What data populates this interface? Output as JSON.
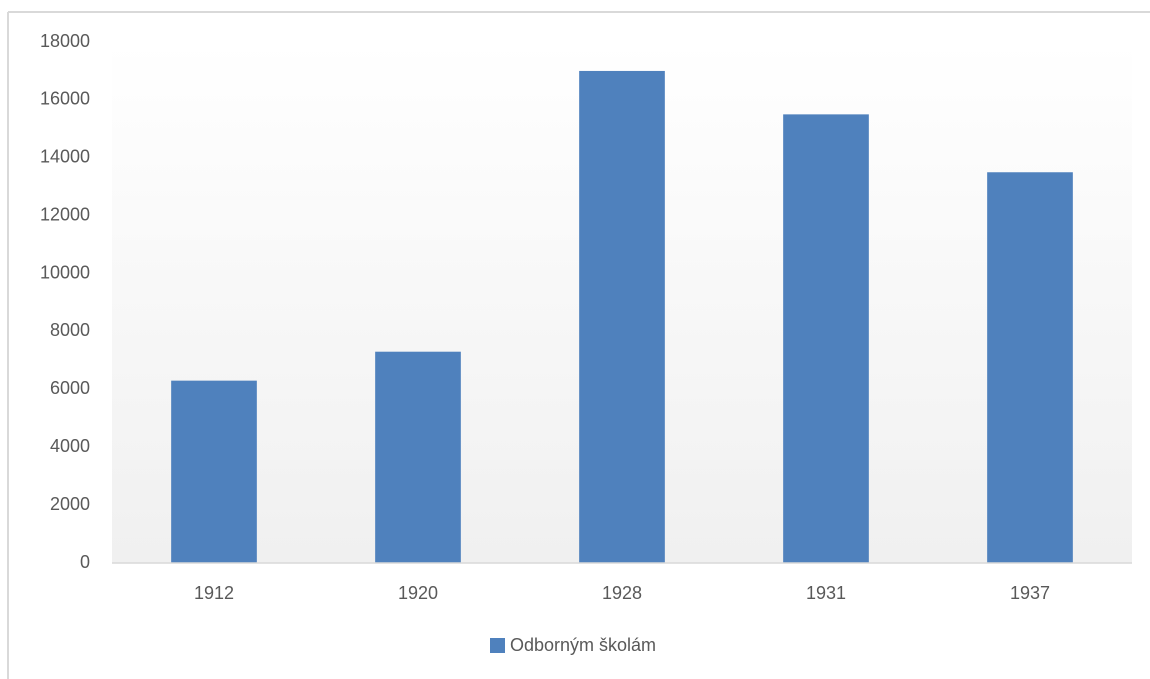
{
  "chart_data": {
    "type": "bar",
    "categories": [
      "1912",
      "1920",
      "1928",
      "1931",
      "1937"
    ],
    "series": [
      {
        "name": "Odborným školám",
        "color": "#4f81bd",
        "values": [
          6300,
          7300,
          17000,
          15500,
          13500
        ]
      }
    ],
    "ylim": [
      0,
      18000
    ],
    "yticks": [
      0,
      2000,
      4000,
      6000,
      8000,
      10000,
      12000,
      14000,
      16000,
      18000
    ],
    "grid": false,
    "legend": "bottom"
  }
}
